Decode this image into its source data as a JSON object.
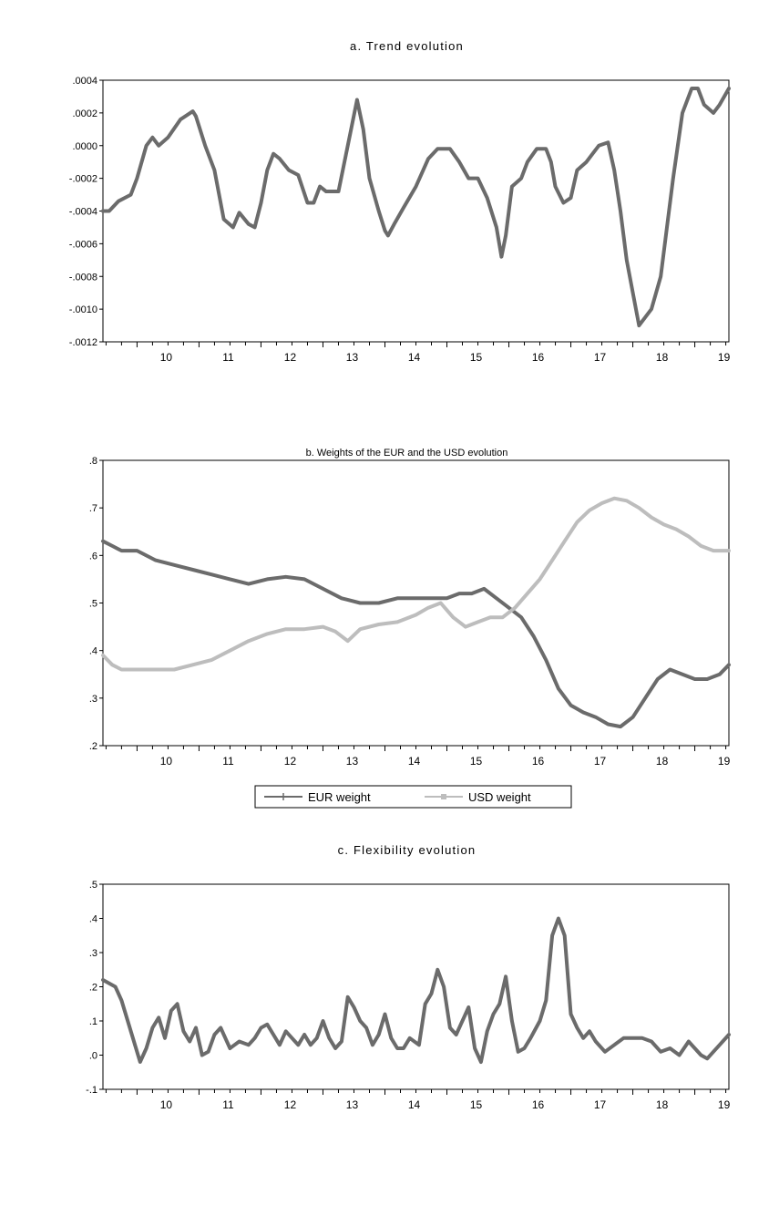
{
  "colors": {
    "eur": "#6b6b6b",
    "usd": "#bdbdbd",
    "trend": "#6b6b6b",
    "flex": "#6b6b6b",
    "axis": "#000000"
  },
  "chart_data": [
    {
      "type": "line",
      "title": "a. Trend evolution",
      "xlabel": "",
      "ylabel": "",
      "x_tick_labels": [
        "10",
        "11",
        "12",
        "13",
        "14",
        "15",
        "16",
        "17",
        "18",
        "19"
      ],
      "x_range": [
        2009.45,
        2019.55
      ],
      "ylim": [
        -0.0012,
        0.0004
      ],
      "y_ticks": [
        0.0004,
        0.0002,
        0.0,
        -0.0002,
        -0.0004,
        -0.0006,
        -0.0008,
        -0.001,
        -0.0012
      ],
      "y_tick_labels": [
        ".0004",
        ".0002",
        ".0000",
        "-.0002",
        "-.0004",
        "-.0006",
        "-.0008",
        "-.0010",
        "-.0012"
      ],
      "grid": false,
      "legend": null,
      "series": [
        {
          "color": "trend",
          "x": [
            2009.45,
            2009.55,
            2009.7,
            2009.9,
            2010.0,
            2010.15,
            2010.25,
            2010.35,
            2010.5,
            2010.7,
            2010.9,
            2010.95,
            2011.1,
            2011.25,
            2011.4,
            2011.55,
            2011.65,
            2011.8,
            2011.9,
            2012.0,
            2012.1,
            2012.2,
            2012.3,
            2012.45,
            2012.6,
            2012.75,
            2012.85,
            2012.95,
            2013.05,
            2013.25,
            2013.4,
            2013.55,
            2013.65,
            2013.75,
            2013.9,
            2014.0,
            2014.05,
            2014.15,
            2014.3,
            2014.5,
            2014.7,
            2014.85,
            2014.95,
            2015.05,
            2015.2,
            2015.35,
            2015.5,
            2015.65,
            2015.8,
            2015.88,
            2015.95,
            2016.05,
            2016.2,
            2016.3,
            2016.45,
            2016.6,
            2016.68,
            2016.75,
            2016.88,
            2017.0,
            2017.1,
            2017.25,
            2017.35,
            2017.45,
            2017.6,
            2017.7,
            2017.8,
            2017.9,
            2018.0,
            2018.1,
            2018.2,
            2018.3,
            2018.45,
            2018.55,
            2018.65,
            2018.8,
            2018.95,
            2019.05,
            2019.15,
            2019.3,
            2019.4,
            2019.55
          ],
          "values": [
            -0.0004,
            -0.0004,
            -0.00034,
            -0.0003,
            -0.0002,
            0.0,
            5e-05,
            0.0,
            5e-05,
            0.00016,
            0.00021,
            0.00018,
            0.0,
            -0.00015,
            -0.00045,
            -0.0005,
            -0.00041,
            -0.00048,
            -0.0005,
            -0.00035,
            -0.00015,
            -5e-05,
            -8e-05,
            -0.00015,
            -0.00018,
            -0.00035,
            -0.00035,
            -0.00025,
            -0.00028,
            -0.00028,
            0.0,
            0.00028,
            0.0001,
            -0.0002,
            -0.0004,
            -0.00052,
            -0.00055,
            -0.00048,
            -0.00038,
            -0.00025,
            -8e-05,
            -2e-05,
            -2e-05,
            -2e-05,
            -0.0001,
            -0.0002,
            -0.0002,
            -0.00032,
            -0.0005,
            -0.00068,
            -0.00055,
            -0.00025,
            -0.0002,
            -0.0001,
            -2e-05,
            -2e-05,
            -0.0001,
            -0.00025,
            -0.00035,
            -0.00032,
            -0.00015,
            -0.0001,
            -5e-05,
            0.0,
            2e-05,
            -0.00015,
            -0.0004,
            -0.0007,
            -0.0009,
            -0.0011,
            -0.00105,
            -0.001,
            -0.0008,
            -0.0005,
            -0.0002,
            0.0002,
            0.00035,
            0.00035,
            0.00025,
            0.0002,
            0.00025,
            0.00035
          ]
        }
      ]
    },
    {
      "type": "line",
      "title": "b. Weights of the EUR and the USD evolution",
      "xlabel": "",
      "ylabel": "",
      "x_tick_labels": [
        "10",
        "11",
        "12",
        "13",
        "14",
        "15",
        "16",
        "17",
        "18",
        "19"
      ],
      "x_range": [
        2009.45,
        2019.55
      ],
      "ylim": [
        0.2,
        0.8
      ],
      "y_ticks": [
        0.8,
        0.7,
        0.6,
        0.5,
        0.4,
        0.3,
        0.2
      ],
      "y_tick_labels": [
        ".8",
        ".7",
        ".6",
        ".5",
        ".4",
        ".3",
        ".2"
      ],
      "grid": false,
      "legend": "bottom-center",
      "series": [
        {
          "name": "EUR weight",
          "color": "eur",
          "x": [
            2009.45,
            2009.6,
            2009.75,
            2010.0,
            2010.3,
            2010.6,
            2010.9,
            2011.2,
            2011.5,
            2011.8,
            2012.1,
            2012.4,
            2012.7,
            2013.0,
            2013.3,
            2013.6,
            2013.9,
            2014.2,
            2014.5,
            2014.8,
            2015.0,
            2015.2,
            2015.4,
            2015.6,
            2015.8,
            2016.0,
            2016.2,
            2016.4,
            2016.6,
            2016.8,
            2017.0,
            2017.2,
            2017.4,
            2017.6,
            2017.8,
            2018.0,
            2018.2,
            2018.4,
            2018.6,
            2018.8,
            2019.0,
            2019.2,
            2019.4,
            2019.55
          ],
          "values": [
            0.63,
            0.62,
            0.61,
            0.61,
            0.59,
            0.58,
            0.57,
            0.56,
            0.55,
            0.54,
            0.55,
            0.555,
            0.55,
            0.53,
            0.51,
            0.5,
            0.5,
            0.51,
            0.51,
            0.51,
            0.51,
            0.52,
            0.52,
            0.53,
            0.51,
            0.49,
            0.47,
            0.43,
            0.38,
            0.32,
            0.285,
            0.27,
            0.26,
            0.245,
            0.24,
            0.26,
            0.3,
            0.34,
            0.36,
            0.35,
            0.34,
            0.34,
            0.35,
            0.37
          ]
        },
        {
          "name": "USD weight",
          "color": "usd",
          "x": [
            2009.45,
            2009.6,
            2009.75,
            2010.0,
            2010.3,
            2010.6,
            2010.9,
            2011.2,
            2011.5,
            2011.8,
            2012.1,
            2012.4,
            2012.7,
            2013.0,
            2013.2,
            2013.4,
            2013.6,
            2013.9,
            2014.2,
            2014.5,
            2014.7,
            2014.9,
            2015.1,
            2015.3,
            2015.5,
            2015.7,
            2015.9,
            2016.1,
            2016.3,
            2016.5,
            2016.7,
            2016.9,
            2017.1,
            2017.3,
            2017.5,
            2017.7,
            2017.9,
            2018.1,
            2018.3,
            2018.5,
            2018.7,
            2018.9,
            2019.1,
            2019.3,
            2019.55
          ],
          "values": [
            0.39,
            0.37,
            0.36,
            0.36,
            0.36,
            0.36,
            0.37,
            0.38,
            0.4,
            0.42,
            0.435,
            0.445,
            0.445,
            0.45,
            0.44,
            0.42,
            0.445,
            0.455,
            0.46,
            0.475,
            0.49,
            0.5,
            0.47,
            0.45,
            0.46,
            0.47,
            0.47,
            0.49,
            0.52,
            0.55,
            0.59,
            0.63,
            0.67,
            0.695,
            0.71,
            0.72,
            0.715,
            0.7,
            0.68,
            0.665,
            0.655,
            0.64,
            0.62,
            0.61,
            0.61
          ]
        }
      ]
    },
    {
      "type": "line",
      "title": "c. Flexibility evolution",
      "xlabel": "",
      "ylabel": "",
      "x_tick_labels": [
        "10",
        "11",
        "12",
        "13",
        "14",
        "15",
        "16",
        "17",
        "18",
        "19"
      ],
      "x_range": [
        2009.45,
        2019.55
      ],
      "ylim": [
        -0.1,
        0.5
      ],
      "y_ticks": [
        0.5,
        0.4,
        0.3,
        0.2,
        0.1,
        0.0,
        -0.1
      ],
      "y_tick_labels": [
        ".5",
        ".4",
        ".3",
        ".2",
        ".1",
        ".0",
        "-.1"
      ],
      "grid": false,
      "legend": null,
      "series": [
        {
          "color": "flex",
          "x": [
            2009.45,
            2009.55,
            2009.65,
            2009.75,
            2009.85,
            2009.95,
            2010.05,
            2010.15,
            2010.25,
            2010.35,
            2010.45,
            2010.55,
            2010.65,
            2010.75,
            2010.85,
            2010.95,
            2011.05,
            2011.15,
            2011.25,
            2011.35,
            2011.5,
            2011.65,
            2011.8,
            2011.9,
            2012.0,
            2012.1,
            2012.2,
            2012.3,
            2012.4,
            2012.5,
            2012.6,
            2012.7,
            2012.8,
            2012.9,
            2013.0,
            2013.1,
            2013.2,
            2013.3,
            2013.4,
            2013.5,
            2013.6,
            2013.7,
            2013.8,
            2013.9,
            2014.0,
            2014.1,
            2014.2,
            2014.3,
            2014.4,
            2014.55,
            2014.65,
            2014.75,
            2014.85,
            2014.95,
            2015.05,
            2015.15,
            2015.25,
            2015.35,
            2015.45,
            2015.55,
            2015.65,
            2015.75,
            2015.85,
            2015.95,
            2016.05,
            2016.15,
            2016.25,
            2016.35,
            2016.5,
            2016.6,
            2016.7,
            2016.8,
            2016.9,
            2017.0,
            2017.1,
            2017.2,
            2017.3,
            2017.4,
            2017.55,
            2017.7,
            2017.85,
            2018.0,
            2018.15,
            2018.3,
            2018.45,
            2018.6,
            2018.75,
            2018.9,
            2019.0,
            2019.1,
            2019.2,
            2019.3,
            2019.4,
            2019.55
          ],
          "values": [
            0.22,
            0.21,
            0.2,
            0.16,
            0.1,
            0.04,
            -0.02,
            0.02,
            0.08,
            0.11,
            0.05,
            0.13,
            0.15,
            0.07,
            0.04,
            0.08,
            0.0,
            0.01,
            0.06,
            0.08,
            0.02,
            0.04,
            0.03,
            0.05,
            0.08,
            0.09,
            0.06,
            0.03,
            0.07,
            0.05,
            0.03,
            0.06,
            0.03,
            0.05,
            0.1,
            0.05,
            0.02,
            0.04,
            0.17,
            0.14,
            0.1,
            0.08,
            0.03,
            0.06,
            0.12,
            0.05,
            0.02,
            0.02,
            0.05,
            0.03,
            0.15,
            0.18,
            0.25,
            0.2,
            0.08,
            0.06,
            0.1,
            0.14,
            0.02,
            -0.02,
            0.07,
            0.12,
            0.15,
            0.23,
            0.1,
            0.01,
            0.02,
            0.05,
            0.1,
            0.16,
            0.35,
            0.4,
            0.35,
            0.12,
            0.08,
            0.05,
            0.07,
            0.04,
            0.01,
            0.03,
            0.05,
            0.05,
            0.05,
            0.04,
            0.01,
            0.02,
            0.0,
            0.04,
            0.02,
            0.0,
            -0.01,
            0.01,
            0.03,
            0.06
          ]
        }
      ]
    }
  ]
}
